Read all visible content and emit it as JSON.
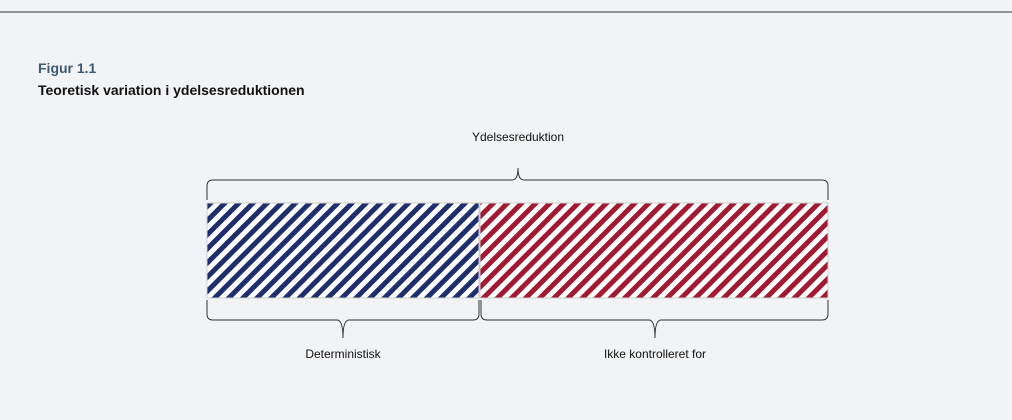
{
  "figure": {
    "label": "Figur 1.1",
    "title": "Teoretisk variation i ydelsesreduktionen"
  },
  "diagram": {
    "top_label": "Ydelsesreduktion",
    "segments": [
      {
        "label": "Deterministisk"
      },
      {
        "label": "Ikke kontrolleret for"
      }
    ]
  }
}
